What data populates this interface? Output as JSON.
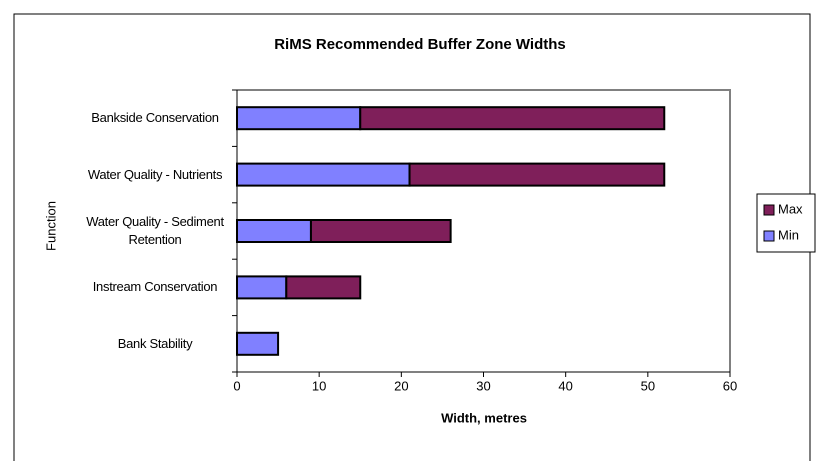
{
  "chart_data": {
    "type": "stacked-bar-horizontal",
    "title": "RiMS Recommended Buffer Zone Widths",
    "x_label": "Width, metres",
    "y_label": "Function",
    "categories": [
      "Bankside Conservation",
      "Water Quality - Nutrients",
      "Water Quality - Sediment Retention",
      "Instream Conservation",
      "Bank Stability"
    ],
    "series": [
      {
        "name": "Min",
        "color": "#8080ff",
        "values": [
          15,
          21,
          9,
          6,
          5
        ]
      },
      {
        "name": "Max",
        "color": "#7f1f5a",
        "values": [
          37,
          31,
          17,
          9,
          null
        ]
      }
    ],
    "xlim": [
      0,
      60
    ],
    "xticks": [
      0,
      10,
      20,
      30,
      40,
      50,
      60
    ],
    "legend": "right"
  }
}
